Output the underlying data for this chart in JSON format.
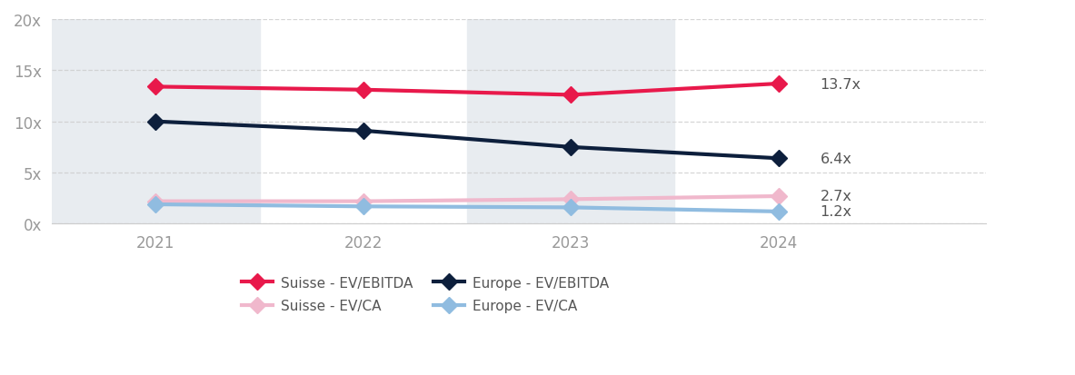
{
  "years": [
    2021,
    2022,
    2023,
    2024
  ],
  "suisse_ebitda": [
    13.4,
    13.1,
    12.6,
    13.7
  ],
  "suisse_ca": [
    2.2,
    2.2,
    2.4,
    2.7
  ],
  "europe_ebitda": [
    10.0,
    9.1,
    7.5,
    6.4
  ],
  "europe_ca": [
    1.9,
    1.7,
    1.6,
    1.2
  ],
  "color_suisse_ebitda": "#e8194b",
  "color_suisse_ca": "#f0b8cc",
  "color_europe_ebitda": "#0d1f3c",
  "color_europe_ca": "#90bce0",
  "bg_shaded": "#e8ecf0",
  "bg_white": "#ffffff",
  "ylim": [
    0,
    20
  ],
  "yticks": [
    0,
    5,
    10,
    15,
    20
  ],
  "ytick_labels": [
    "0x",
    "5x",
    "10x",
    "15x",
    "20x"
  ],
  "label_suisse_ebitda": "Suisse - EV/EBITDA",
  "label_suisse_ca": "Suisse - EV/CA",
  "label_europe_ebitda": "Europe - EV/EBITDA",
  "label_europe_ca": "Europe - EV/CA",
  "anno_suisse_ebitda": "13.7x",
  "anno_europe_ebitda": "6.4x",
  "anno_suisse_ca": "2.7x",
  "anno_europe_ca": "1.2x",
  "linewidth": 3.0,
  "markersize": 9,
  "anno_color": "#555555",
  "tick_color": "#999999",
  "grid_color": "#cccccc"
}
